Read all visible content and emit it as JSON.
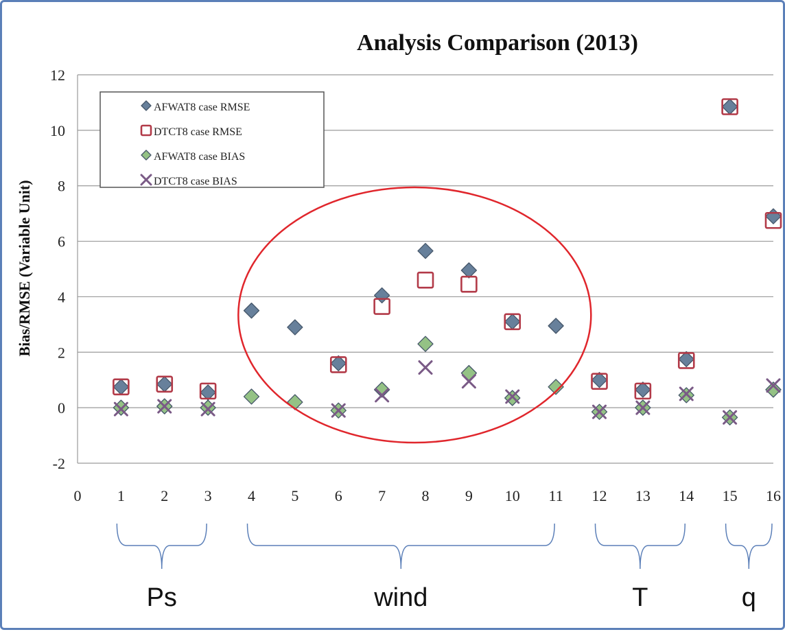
{
  "chart_data": {
    "type": "scatter",
    "title": "Analysis Comparison (2013)",
    "xlabel": "",
    "ylabel": "Bias/RMSE (Variable Unit)",
    "xlim": [
      0,
      16
    ],
    "ylim": [
      -2,
      12
    ],
    "xticks": [
      "0",
      "1",
      "2",
      "3",
      "4",
      "5",
      "6",
      "7",
      "8",
      "9",
      "10",
      "11",
      "12",
      "13",
      "14",
      "15",
      "16"
    ],
    "yticks": [
      "-2",
      "0",
      "2",
      "4",
      "6",
      "8",
      "10",
      "12"
    ],
    "grid": true,
    "legend_position": "top-left",
    "series": [
      {
        "name": "AFWAT8 case RMSE",
        "marker": "diamond",
        "color": "#5f7a96",
        "x": [
          1,
          2,
          3,
          4,
          5,
          6,
          7,
          8,
          9,
          10,
          11,
          12,
          13,
          14,
          15,
          16
        ],
        "y": [
          0.75,
          0.85,
          0.55,
          3.5,
          2.9,
          1.6,
          4.05,
          5.65,
          4.95,
          3.1,
          2.95,
          1.0,
          0.65,
          1.75,
          10.85,
          6.9
        ]
      },
      {
        "name": "DTCT8 case RMSE",
        "marker": "square",
        "color": "#b23a48",
        "x": [
          1,
          2,
          3,
          6,
          7,
          8,
          9,
          10,
          12,
          13,
          14,
          15,
          16
        ],
        "y": [
          0.75,
          0.85,
          0.6,
          1.55,
          3.65,
          4.6,
          4.45,
          3.1,
          0.95,
          0.6,
          1.7,
          10.85,
          6.75
        ]
      },
      {
        "name": "AFWAT8 case BIAS",
        "marker": "diamond",
        "color": "#8fbf7f",
        "x": [
          1,
          2,
          3,
          4,
          5,
          6,
          7,
          8,
          9,
          10,
          11,
          12,
          13,
          14,
          15,
          16
        ],
        "y": [
          0.0,
          0.05,
          0.0,
          0.4,
          0.2,
          -0.1,
          0.65,
          2.3,
          1.25,
          0.35,
          0.75,
          -0.15,
          0.0,
          0.45,
          -0.35,
          0.65
        ]
      },
      {
        "name": "DTCT8 case BIAS",
        "marker": "x",
        "color": "#7a5a86",
        "x": [
          1,
          2,
          3,
          6,
          7,
          8,
          9,
          10,
          12,
          13,
          14,
          15,
          16
        ],
        "y": [
          -0.05,
          0.05,
          -0.05,
          -0.1,
          0.45,
          1.45,
          0.95,
          0.4,
          -0.15,
          0.0,
          0.5,
          -0.35,
          0.8
        ]
      }
    ],
    "annotations": {
      "ellipse_label": "",
      "groups": [
        {
          "label": "Ps",
          "from": 1,
          "to": 3
        },
        {
          "label": "wind",
          "from": 4,
          "to": 11
        },
        {
          "label": "T",
          "from": 12,
          "to": 14
        },
        {
          "label": "q",
          "from": 15,
          "to": 16
        }
      ]
    },
    "colors": {
      "frame": "#5b7fb8",
      "ellipse": "#e0262c",
      "brace": "#5b7fb8",
      "grid": "#9a9a9a"
    }
  }
}
